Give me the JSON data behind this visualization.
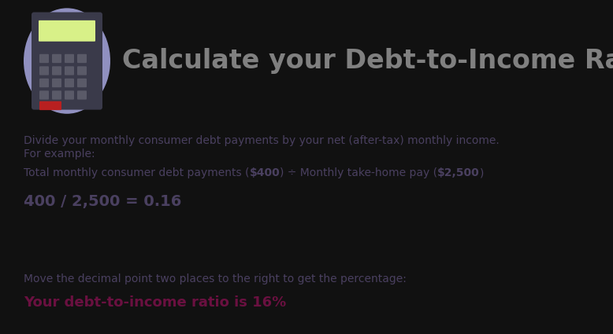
{
  "title": "Calculate your Debt-to-Income Ratio",
  "title_color": "#808080",
  "header_bg": "#111111",
  "green_bg": "#cce896",
  "purple_bg": "#b8b0d0",
  "green_text_normal": "#4a4060",
  "green_text_bold": "#4a4060",
  "purple_text_normal": "#4a4060",
  "purple_text_bold": "#6a1040",
  "line1": "Divide your monthly consumer debt payments by your net (after-tax) monthly income.",
  "line2": "For example:",
  "line3_pre": "Total monthly consumer debt payments (",
  "line3_bold1": "$400",
  "line3_mid": ") ÷ Monthly take-home pay (",
  "line3_bold2": "$2,500",
  "line3_end": ")",
  "line4": "400 / 2,500 = 0.16",
  "line5": "Move the decimal point two places to the right to get the percentage:",
  "line6": "Your debt-to-income ratio is 16%",
  "calculator_bg": "#9090c0",
  "calc_body": "#3a3a4a",
  "calc_screen": "#d8f088",
  "calc_button_dark": "#5a5a68",
  "calc_button_red": "#b82020",
  "separator_color": "#111111",
  "figsize": [
    7.78,
    4.25
  ],
  "dpi": 100
}
